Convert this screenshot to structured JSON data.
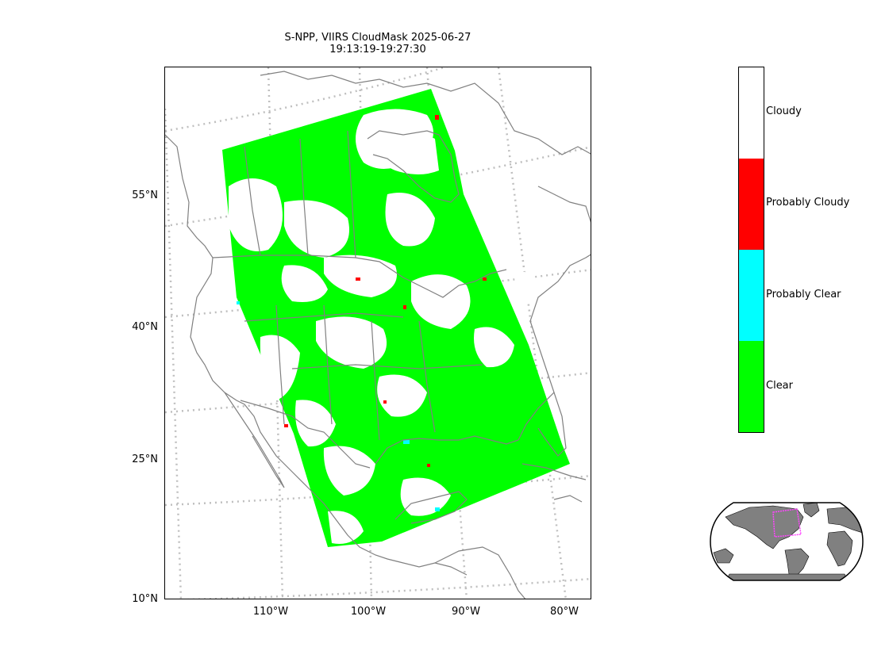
{
  "title": {
    "line1": "S-NPP, VIIRS CloudMask 2025-06-27",
    "line2": "19:13:19-19:27:30"
  },
  "map": {
    "lat_ticks": [
      "55°N",
      "40°N",
      "25°N",
      "10°N"
    ],
    "lon_ticks": [
      "110°W",
      "100°W",
      "90°W",
      "80°W"
    ],
    "colors": {
      "clear": "#00ff00",
      "probably_clear": "#00ffff",
      "probably_cloudy": "#ff0000",
      "cloudy": "#ffffff",
      "coastline": "#808080",
      "graticule": "#bfbfbf"
    }
  },
  "legend": {
    "categories": [
      {
        "label": "Cloudy",
        "color": "#ffffff"
      },
      {
        "label": "Probably Cloudy",
        "color": "#ff0000"
      },
      {
        "label": "Probably Clear",
        "color": "#00ffff"
      },
      {
        "label": "Clear",
        "color": "#00ff00"
      }
    ]
  },
  "inset": {
    "land_color": "#808080",
    "box_color": "#ff44ff"
  }
}
